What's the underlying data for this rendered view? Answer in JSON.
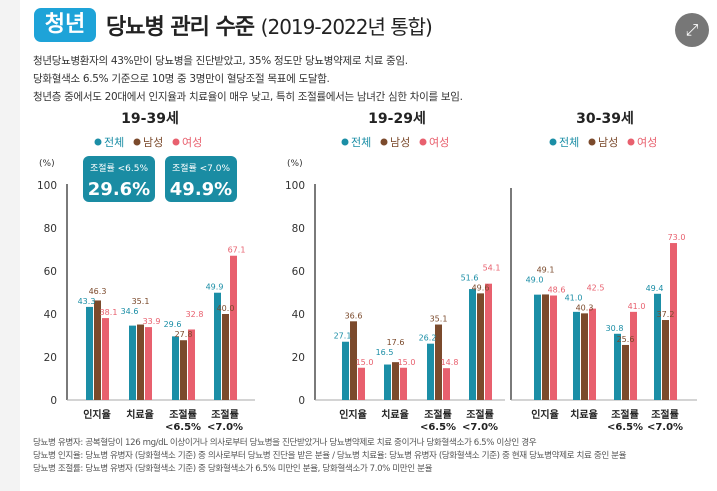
{
  "header": {
    "badge": "청년",
    "title": "당뇨병 관리 수준",
    "subtitle": "(2019-2022년 통합)",
    "expand_icon": "expand-arrows-icon"
  },
  "description": [
    "청년당뇨병환자의 43%만이 당뇨병을 진단받았고, 35% 정도만 당뇨병약제로 치료 중임.",
    "당화혈색소 6.5% 기준으로 10명 중 3명만이 혈당조절 목표에 도달함.",
    "청년층 중에서도 20대에서 인지율과 치료율이 매우 낮고, 특히 조절률에서는 남녀간 심한 차이를 보임."
  ],
  "highlights": [
    {
      "label": "조절률 <6.5%",
      "value": "29.6%"
    },
    {
      "label": "조절률 <7.0%",
      "value": "49.9%"
    }
  ],
  "colors": {
    "전체": "#1b8ea6",
    "남성": "#7b4a2c",
    "여성": "#e8606e",
    "badge": "#1ea3d8",
    "highlight": "#1a8ca3"
  },
  "chart_data": [
    {
      "type": "bar",
      "title": "19-39세",
      "ylabel": "(%)",
      "ylim": [
        0,
        100
      ],
      "yticks": [
        0,
        20,
        40,
        60,
        80,
        100
      ],
      "categories": [
        "인지율",
        "치료율",
        "조절률\n<6.5%",
        "조절률\n<7.0%"
      ],
      "series": [
        {
          "name": "전체",
          "values": [
            43.3,
            34.6,
            29.6,
            49.9
          ]
        },
        {
          "name": "남성",
          "values": [
            46.3,
            35.1,
            27.8,
            40.0
          ]
        },
        {
          "name": "여성",
          "values": [
            38.1,
            33.9,
            32.8,
            67.1
          ]
        }
      ],
      "legend": "top"
    },
    {
      "type": "bar",
      "title": "19-29세",
      "ylabel": "(%)",
      "ylim": [
        0,
        100
      ],
      "yticks": [
        0,
        20,
        40,
        60,
        80,
        100
      ],
      "categories": [
        "인지율",
        "치료율",
        "조절률\n<6.5%",
        "조절률\n<7.0%"
      ],
      "series": [
        {
          "name": "전체",
          "values": [
            27.1,
            16.5,
            26.2,
            51.6
          ]
        },
        {
          "name": "남성",
          "values": [
            36.6,
            17.6,
            35.1,
            49.6
          ]
        },
        {
          "name": "여성",
          "values": [
            15.0,
            15.0,
            14.8,
            54.1
          ]
        }
      ],
      "legend": "top"
    },
    {
      "type": "bar",
      "title": "30-39세",
      "ylim": [
        0,
        100
      ],
      "categories": [
        "인지율",
        "치료율",
        "조절률\n<6.5%",
        "조절률\n<7.0%"
      ],
      "series": [
        {
          "name": "전체",
          "values": [
            49.0,
            41.0,
            30.8,
            49.4
          ]
        },
        {
          "name": "남성",
          "values": [
            49.1,
            40.3,
            25.6,
            37.2
          ]
        },
        {
          "name": "여성",
          "values": [
            48.6,
            42.5,
            41.0,
            73.0
          ]
        }
      ],
      "legend": "top"
    }
  ],
  "notes": [
    "당뇨병 유병자: 공복혈당이 126 mg/dL 이상이거나 의사로부터 당뇨병을 진단받았거나 당뇨병약제로 치료 중이거나 당화혈색소가 6.5% 이상인 경우",
    "당뇨병 인지율: 당뇨병 유병자 (당화혈색소 기준) 중 의사로부터 당뇨병 진단을 받은 분율 / 당뇨병 치료율: 당뇨병 유병자 (당화혈색소 기준) 중 현재 당뇨병약제로 치료 중인 분율",
    "당뇨병 조절률: 당뇨병 유병자 (당화혈색소 기준) 중 당화혈색소가 6.5% 미만인 분율, 당화혈색소가 7.0% 미만인 분율"
  ]
}
